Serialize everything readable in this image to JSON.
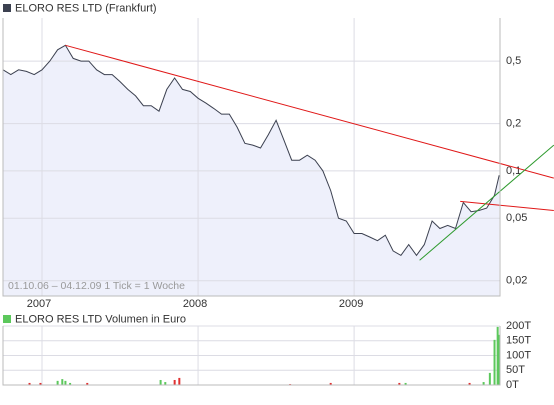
{
  "chart_data": [
    {
      "type": "line",
      "log_y": true,
      "grid": true,
      "area_color": "#eef0fb",
      "legend_color": "#3c4150",
      "note": "01.10.06 – 04.12.09   1 Tick = 1 Woche",
      "xlim": [
        2006.75,
        2009.935
      ],
      "xticks": [
        2007,
        2008,
        2009
      ],
      "ylim": [
        0.016,
        0.94
      ],
      "yticks": [
        {
          "value": 0.02,
          "label": "0,02"
        },
        {
          "value": 0.05,
          "label": "0,05"
        },
        {
          "value": 0.1,
          "label": "0,1"
        },
        {
          "value": 0.2,
          "label": "0,2"
        },
        {
          "value": 0.5,
          "label": "0,5"
        }
      ],
      "x": [
        2006.75,
        2006.8,
        2006.85,
        2006.9,
        2006.95,
        2007.0,
        2007.05,
        2007.1,
        2007.15,
        2007.2,
        2007.25,
        2007.3,
        2007.35,
        2007.4,
        2007.45,
        2007.5,
        2007.55,
        2007.6,
        2007.65,
        2007.7,
        2007.75,
        2007.8,
        2007.85,
        2007.9,
        2007.95,
        2008.0,
        2008.05,
        2008.1,
        2008.15,
        2008.2,
        2008.25,
        2008.3,
        2008.35,
        2008.4,
        2008.45,
        2008.5,
        2008.55,
        2008.6,
        2008.65,
        2008.7,
        2008.75,
        2008.8,
        2008.85,
        2008.9,
        2008.95,
        2009.0,
        2009.05,
        2009.1,
        2009.15,
        2009.2,
        2009.25,
        2009.3,
        2009.35,
        2009.4,
        2009.45,
        2009.5,
        2009.55,
        2009.6,
        2009.65,
        2009.7,
        2009.75,
        2009.8,
        2009.85,
        2009.9,
        2009.93
      ],
      "series": [
        {
          "name": "ELORO RES LTD (Frankfurt)",
          "color": "#3c4150",
          "values": [
            0.44,
            0.41,
            0.44,
            0.43,
            0.41,
            0.44,
            0.5,
            0.59,
            0.63,
            0.52,
            0.5,
            0.5,
            0.44,
            0.41,
            0.41,
            0.37,
            0.33,
            0.3,
            0.26,
            0.26,
            0.24,
            0.33,
            0.39,
            0.33,
            0.32,
            0.29,
            0.27,
            0.25,
            0.23,
            0.23,
            0.19,
            0.15,
            0.146,
            0.14,
            0.17,
            0.21,
            0.157,
            0.117,
            0.117,
            0.126,
            0.117,
            0.1,
            0.075,
            0.05,
            0.048,
            0.04,
            0.04,
            0.038,
            0.036,
            0.039,
            0.031,
            0.029,
            0.034,
            0.029,
            0.034,
            0.048,
            0.043,
            0.045,
            0.043,
            0.063,
            0.055,
            0.056,
            0.058,
            0.07,
            0.094
          ]
        }
      ],
      "trendlines": [
        {
          "color": "#e01818",
          "x": [
            2007.15,
            2010.28
          ],
          "y": [
            0.63,
            0.09
          ]
        },
        {
          "color": "#e01818",
          "x": [
            2009.68,
            2010.28
          ],
          "y": [
            0.064,
            0.056
          ]
        },
        {
          "color": "#2e9a2e",
          "x": [
            2009.42,
            2010.28
          ],
          "y": [
            0.027,
            0.146
          ]
        }
      ]
    },
    {
      "type": "bar",
      "grid": true,
      "name": "ELORO RES LTD Volumen in Euro",
      "legend_color": "#5cc85c",
      "xlim": [
        2006.75,
        2009.935
      ],
      "xticks": [
        2007,
        2008,
        2009
      ],
      "ylim": [
        0,
        200000
      ],
      "yticks": [
        {
          "value": 0,
          "label": "0T"
        },
        {
          "value": 50000,
          "label": "50T"
        },
        {
          "value": 100000,
          "label": "100T"
        },
        {
          "value": 150000,
          "label": "150T"
        },
        {
          "value": 200000,
          "label": "200T"
        }
      ],
      "x": [
        2006.92,
        2006.99,
        2007.1,
        2007.13,
        2007.15,
        2007.18,
        2007.29,
        2007.76,
        2007.79,
        2007.85,
        2007.88,
        2008.59,
        2008.85,
        2009.29,
        2009.33,
        2009.74,
        2009.83,
        2009.87,
        2009.9,
        2009.92,
        2009.93
      ],
      "values": [
        7000,
        7000,
        14000,
        20000,
        14000,
        7000,
        7000,
        17000,
        10000,
        17000,
        24000,
        3000,
        7000,
        7000,
        7000,
        7000,
        10000,
        41000,
        153000,
        197000,
        170000
      ],
      "colors": [
        "#e03030",
        "#e03030",
        "#5cc85c",
        "#5cc85c",
        "#5cc85c",
        "#5cc85c",
        "#e03030",
        "#5cc85c",
        "#5cc85c",
        "#e03030",
        "#e03030",
        "#e03030",
        "#e03030",
        "#e03030",
        "#5cc85c",
        "#e03030",
        "#5cc85c",
        "#5cc85c",
        "#5cc85c",
        "#5cc85c",
        "#5cc85c"
      ]
    }
  ]
}
